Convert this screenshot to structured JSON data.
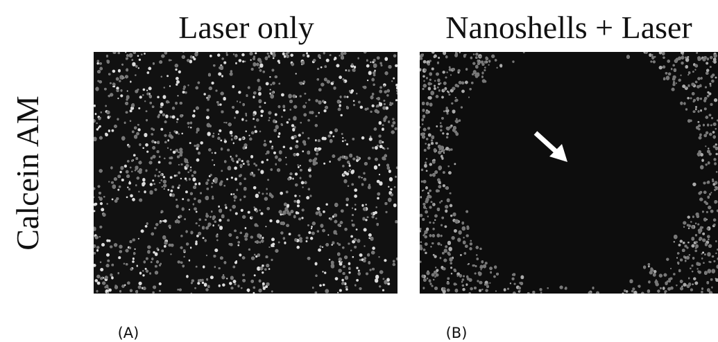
{
  "columns": [
    "Laser only",
    "Nanoshells + Laser"
  ],
  "row_label": "Calcein AM",
  "panel_labels": [
    "(A)",
    "(B)"
  ]
}
